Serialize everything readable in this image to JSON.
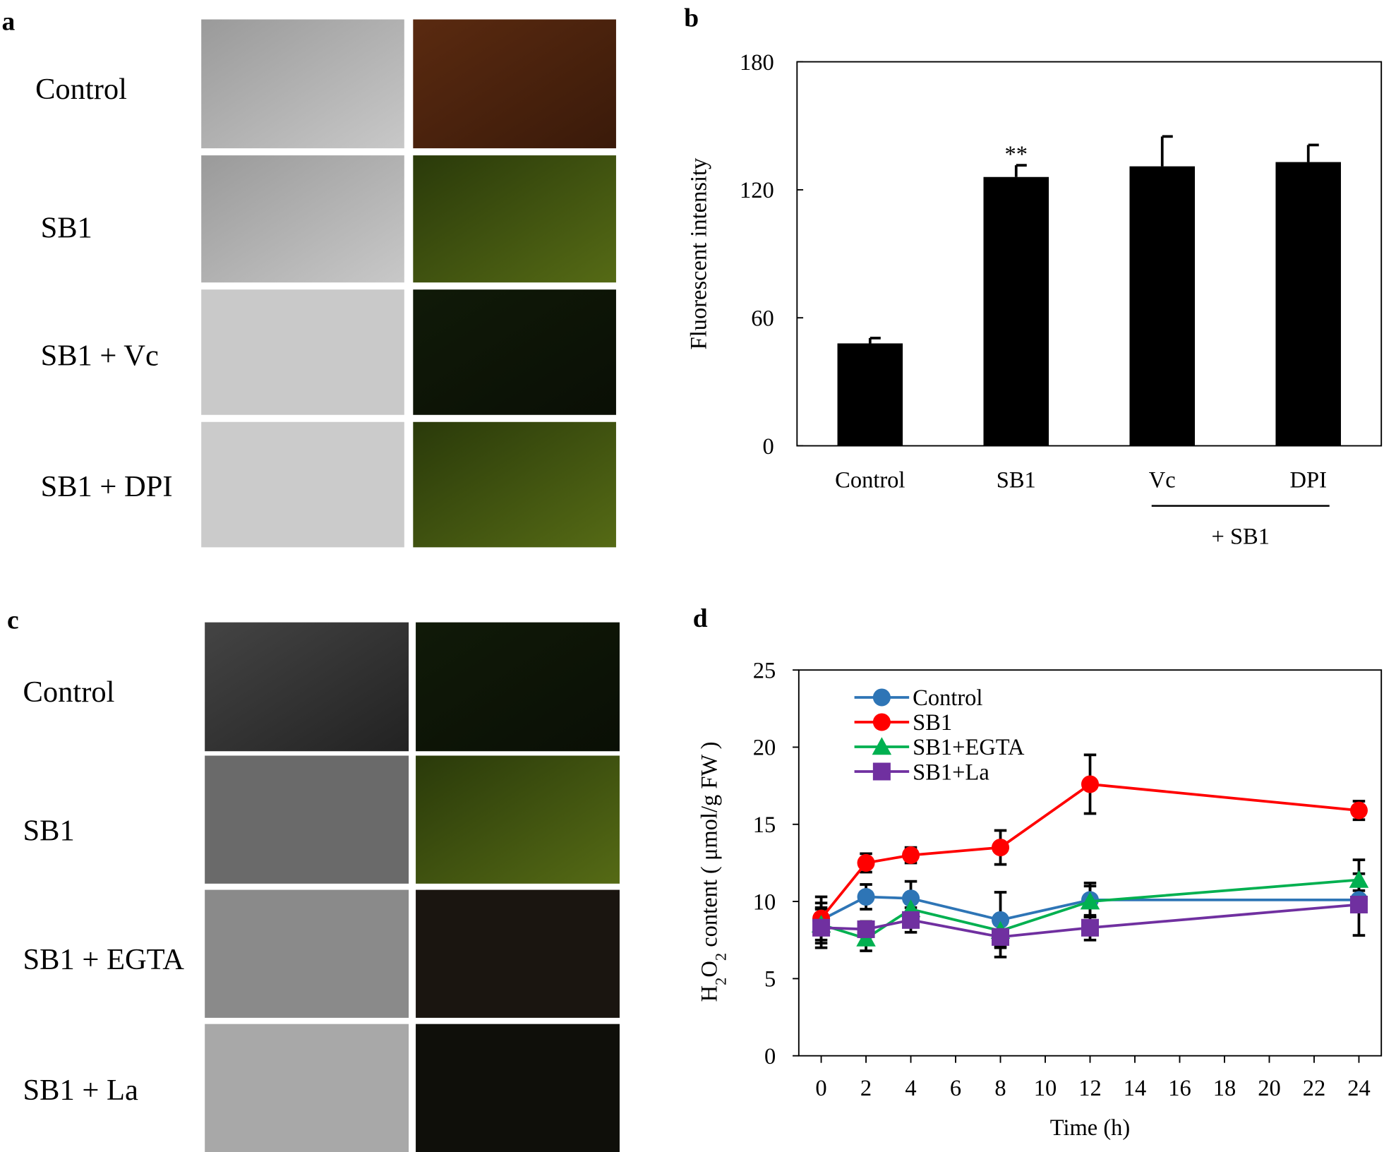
{
  "image_panels": [
    {
      "label": "a",
      "rows": [
        "Control",
        "SB1",
        "SB1 + Vc",
        "SB1 + DPI"
      ]
    },
    {
      "label": "c",
      "rows": [
        "Control",
        "SB1",
        "SB1 + EGTA",
        "SB1 + La"
      ]
    }
  ],
  "chart_data": [
    {
      "type": "bar",
      "label": "b",
      "ylabel": "Fluorescent intensity",
      "categories": [
        "Control",
        "SB1",
        "Vc",
        "DPI"
      ],
      "values": [
        48,
        126,
        131,
        133
      ],
      "errors": [
        2.5,
        5.5,
        14,
        8
      ],
      "color": "#000000",
      "ylim": [
        0,
        180
      ],
      "yticks": [
        0,
        60,
        120,
        180
      ],
      "annotations": [
        {
          "category": 1,
          "text": "**"
        }
      ],
      "group_label": "+ SB1"
    },
    {
      "type": "line",
      "label": "d",
      "xlabel": "Time (h)",
      "ylabel_parts": [
        "H",
        "2",
        "O",
        "2",
        " content ( μmol/g FW )"
      ],
      "x": [
        0,
        2,
        4,
        8,
        12,
        24
      ],
      "xlim": [
        -1,
        25
      ],
      "xticks": [
        0,
        2,
        4,
        6,
        8,
        10,
        12,
        14,
        16,
        18,
        20,
        22,
        24
      ],
      "ylim": [
        0,
        25
      ],
      "yticks": [
        0,
        5,
        10,
        15,
        20,
        25
      ],
      "legend": "upper left",
      "series": [
        {
          "name": "Control",
          "color": "#2e75b6",
          "marker": "circle",
          "values": [
            8.8,
            10.3,
            10.2,
            8.8,
            10.1,
            10.1
          ],
          "errors": [
            1.5,
            0.8,
            1.1,
            1.8,
            1.1,
            0.6
          ]
        },
        {
          "name": "SB1",
          "color": "#ff0000",
          "marker": "circle",
          "values": [
            8.9,
            12.5,
            13.0,
            13.5,
            17.6,
            15.9
          ],
          "errors": [
            1.0,
            0.6,
            0.5,
            1.1,
            1.9,
            0.6
          ]
        },
        {
          "name": "SB1+EGTA",
          "color": "#00b050",
          "marker": "triangle",
          "values": [
            8.5,
            7.6,
            9.5,
            8.1,
            10.0,
            11.4
          ],
          "errors": [
            1.0,
            0.8,
            1.0,
            1.0,
            1.0,
            1.3
          ]
        },
        {
          "name": "SB1+La",
          "color": "#7030a0",
          "marker": "square",
          "values": [
            8.3,
            8.2,
            8.8,
            7.7,
            8.3,
            9.8
          ],
          "errors": [
            1.3,
            0.5,
            0.8,
            1.3,
            0.8,
            2.0
          ]
        }
      ]
    }
  ]
}
